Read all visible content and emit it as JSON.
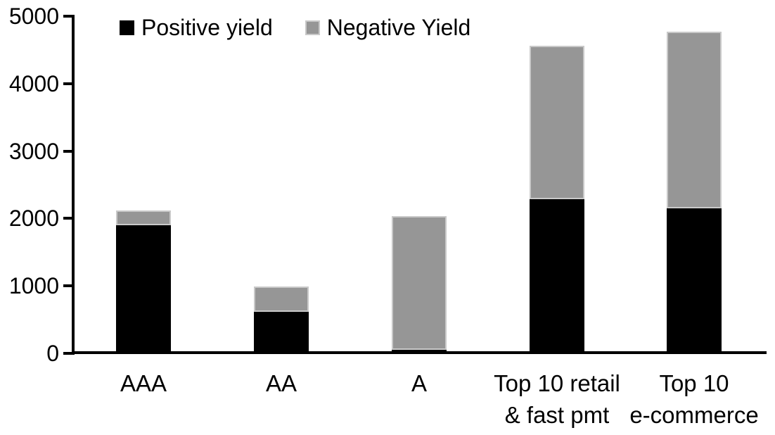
{
  "chart_data": {
    "type": "bar",
    "stacked": true,
    "title": "",
    "categories": [
      [
        "AAA"
      ],
      [
        "AA"
      ],
      [
        "A"
      ],
      [
        "Top 10 retail",
        "& fast pmt"
      ],
      [
        "Top 10",
        "e-commerce"
      ]
    ],
    "series": [
      {
        "name": "Positive yield",
        "color": "#000000",
        "values": [
          1900,
          620,
          50,
          2290,
          2150
        ]
      },
      {
        "name": "Negative Yield",
        "color": "#969696",
        "values": [
          220,
          380,
          1980,
          2280,
          2620
        ]
      }
    ],
    "totals": [
      2120,
      1000,
      2030,
      4570,
      4770
    ],
    "ylim": [
      0,
      5000
    ],
    "yticks": [
      0,
      1000,
      2000,
      3000,
      4000,
      5000
    ],
    "xlabel": "",
    "ylabel": "",
    "legend_position": "top-left",
    "grid": false,
    "axis_color": "#000000",
    "segment_outline_color": "#c9c9c9",
    "background": "#ffffff"
  }
}
